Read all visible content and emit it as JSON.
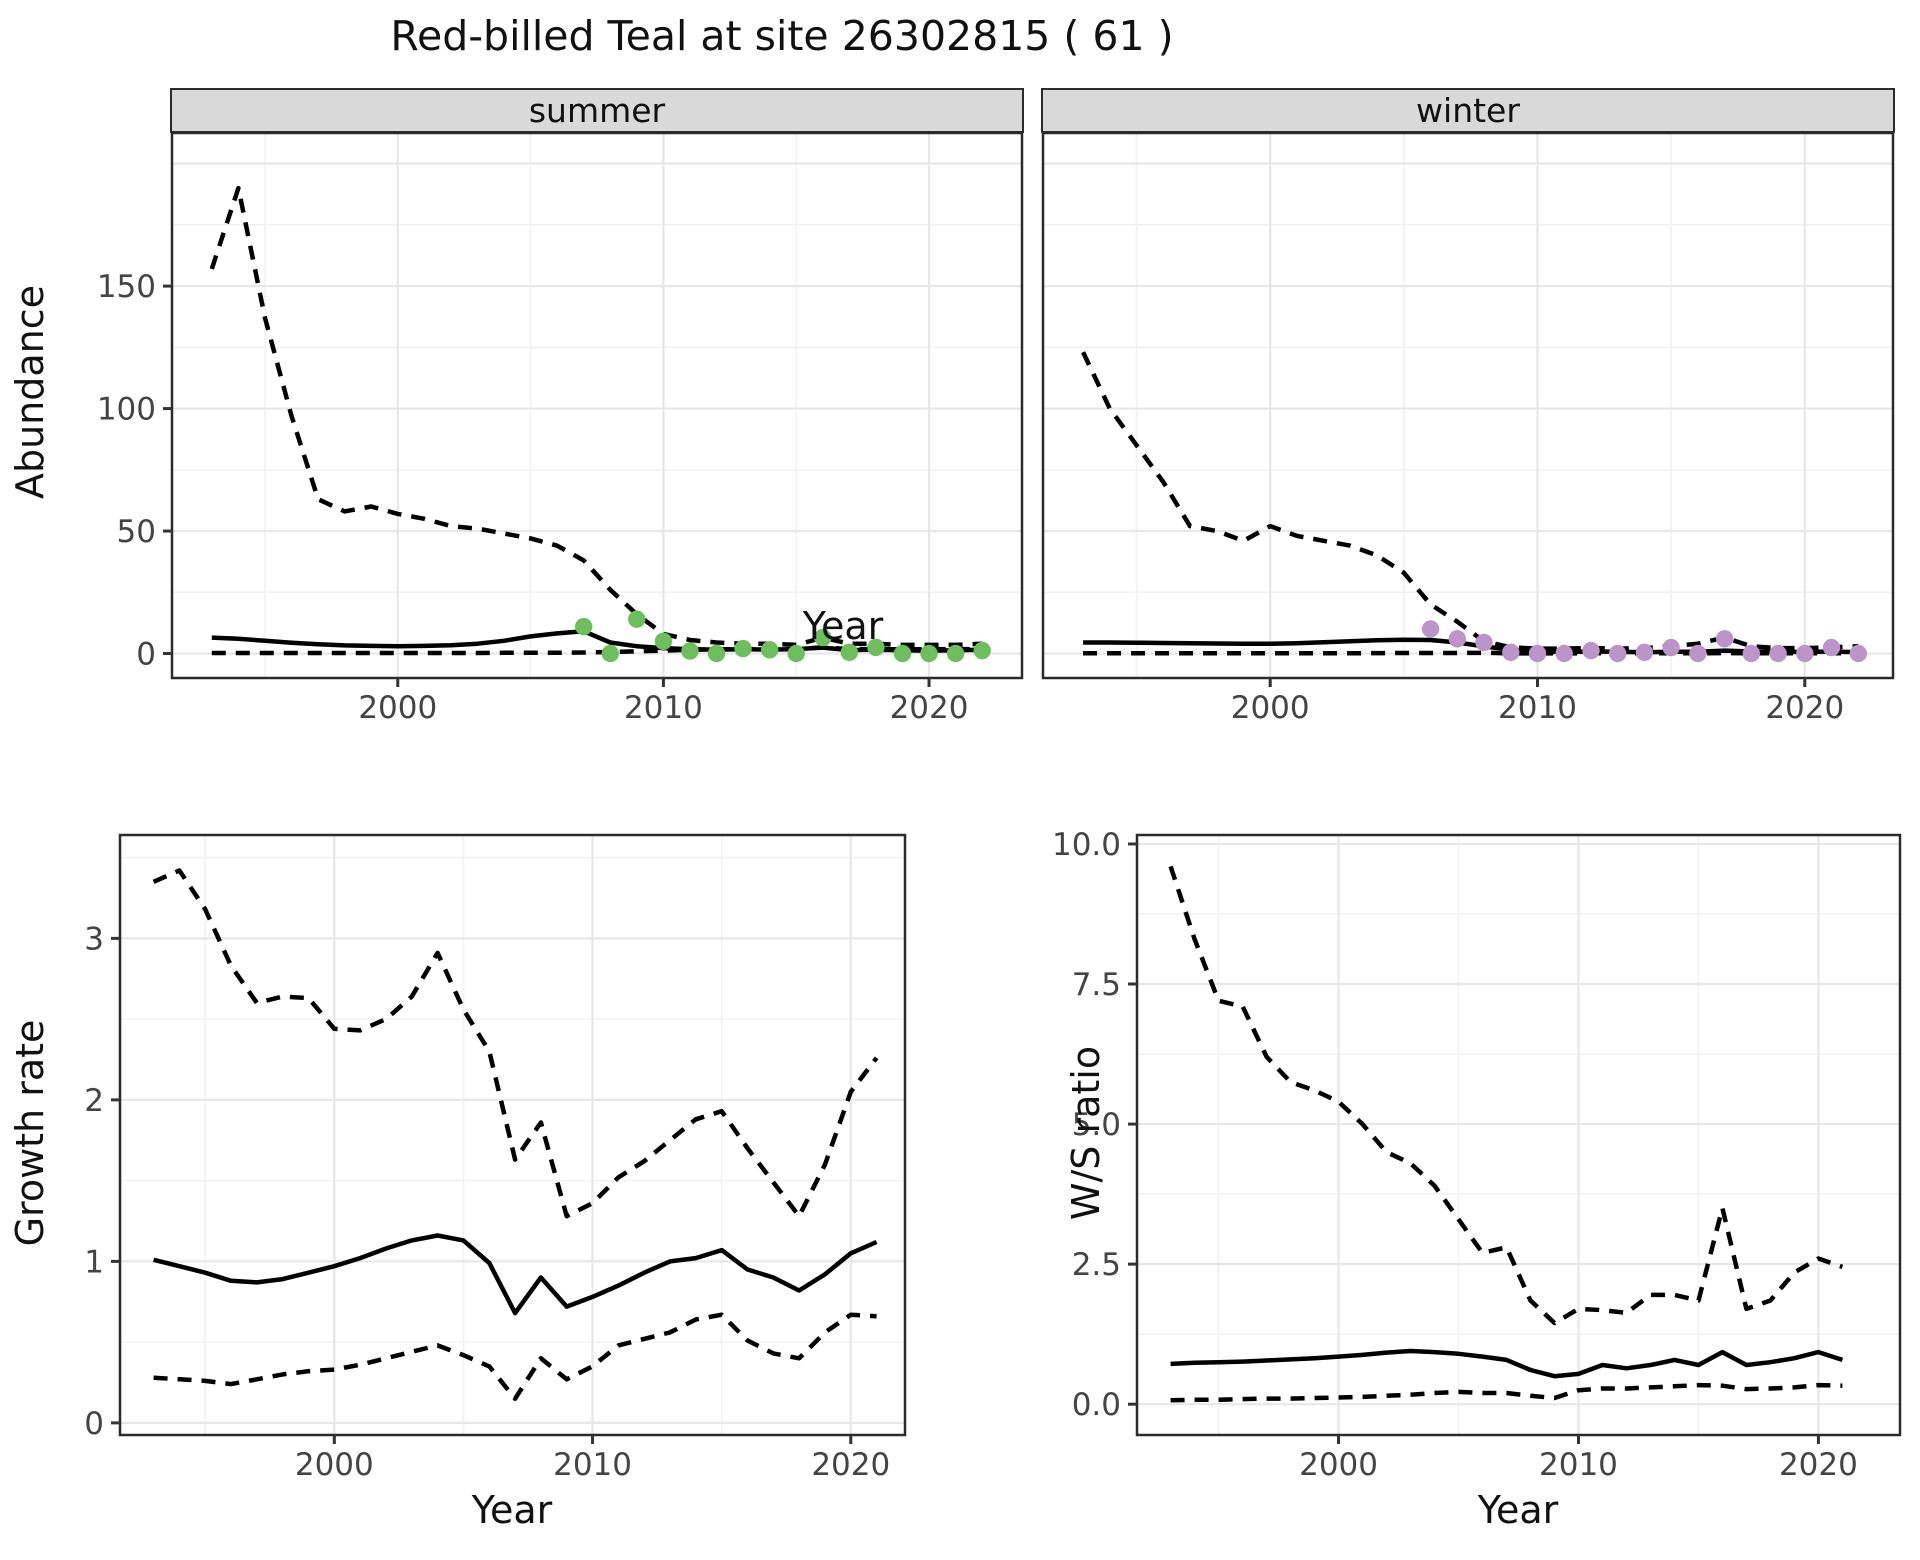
{
  "title": "Red-billed Teal at site 26302815 ( 61 )",
  "facets": {
    "summer_label": "summer",
    "winter_label": "winter"
  },
  "axis_titles": {
    "top_x": "Year",
    "top_y": "Abundance",
    "bottom_left_x": "Year",
    "bottom_left_y": "Growth rate",
    "bottom_right_x": "Year",
    "bottom_right_y": "W/S ratio"
  },
  "colors": {
    "summer_point": "#6dbe5c",
    "winter_point": "#bb95c9",
    "line": "#000000",
    "grid_major": "#e7e7e7",
    "grid_minor": "#f2f2f2",
    "panel_border": "#2b2b2b",
    "strip_bg": "#d9d9d9",
    "axis_text": "#444444"
  },
  "chart_data": [
    {
      "id": "summer",
      "type": "line",
      "facet_label": "summer",
      "xlabel": "Year",
      "ylabel": "Abundance",
      "xlim": [
        1991.5,
        2023.5
      ],
      "ylim": [
        -10,
        212.5
      ],
      "x_ticks": [
        {
          "v": 2000,
          "label": "2000"
        },
        {
          "v": 2010,
          "label": "2010"
        },
        {
          "v": 2020,
          "label": "2020"
        }
      ],
      "x_grid_minor": [
        1995,
        2005,
        2015
      ],
      "y_ticks": [
        {
          "v": 0,
          "label": "0"
        },
        {
          "v": 50,
          "label": "50"
        },
        {
          "v": 100,
          "label": "100"
        },
        {
          "v": 150,
          "label": "150"
        }
      ],
      "y_grid_major": [
        0,
        50,
        100,
        150,
        200
      ],
      "y_grid_minor": [
        25,
        75,
        125,
        175
      ],
      "years": [
        1993,
        1994,
        1995,
        1996,
        1997,
        1998,
        1999,
        2000,
        2001,
        2002,
        2003,
        2004,
        2005,
        2006,
        2007,
        2008,
        2009,
        2010,
        2011,
        2012,
        2013,
        2014,
        2015,
        2016,
        2017,
        2018,
        2019,
        2020,
        2021,
        2022
      ],
      "series": [
        {
          "name": "upper_95ci",
          "style": "dashed",
          "values": [
            157,
            190,
            137,
            97,
            63,
            58,
            60,
            57,
            55,
            52,
            51,
            49,
            47,
            44,
            38,
            26,
            16,
            8,
            5.5,
            4.5,
            4,
            4,
            3.5,
            6.5,
            4,
            4,
            3.5,
            3.5,
            3.5,
            4
          ]
        },
        {
          "name": "median",
          "style": "solid",
          "values": [
            6.5,
            6.0,
            5.2,
            4.4,
            3.8,
            3.3,
            3.1,
            3.0,
            3.1,
            3.4,
            4.0,
            5.2,
            7.0,
            8.2,
            9.1,
            4.5,
            3.0,
            2.2,
            1.7,
            1.6,
            1.7,
            1.6,
            1.8,
            2.4,
            1.4,
            1.6,
            1.3,
            1.1,
            1.3,
            1.5
          ]
        },
        {
          "name": "lower_95ci",
          "style": "dashed",
          "values": [
            0.2,
            0.2,
            0.2,
            0.2,
            0.2,
            0.2,
            0.2,
            0.2,
            0.2,
            0.2,
            0.2,
            0.3,
            0.3,
            0.3,
            0.4,
            0.6,
            0.9,
            1.2,
            1.5,
            1.7,
            1.8,
            1.8,
            1.8,
            2.5,
            1.8,
            1.8,
            1.7,
            1.7,
            1.8,
            1.8
          ]
        }
      ],
      "points": {
        "name": "observed-counts-summer",
        "color": "#6dbe5c",
        "years": [
          2007,
          2008,
          2009,
          2010,
          2011,
          2012,
          2013,
          2014,
          2015,
          2016,
          2017,
          2018,
          2019,
          2020,
          2021,
          2022
        ],
        "values": [
          11,
          0,
          14,
          5,
          1,
          0,
          2,
          1.5,
          0,
          6.5,
          0.5,
          2.5,
          0,
          0,
          0,
          1.2
        ]
      }
    },
    {
      "id": "winter",
      "type": "line",
      "facet_label": "winter",
      "xlabel": "Year",
      "ylabel": "Abundance",
      "xlim": [
        1991.5,
        2023.3
      ],
      "ylim": [
        -10,
        212.5
      ],
      "x_ticks": [
        {
          "v": 2000,
          "label": "2000"
        },
        {
          "v": 2010,
          "label": "2010"
        },
        {
          "v": 2020,
          "label": "2020"
        }
      ],
      "x_grid_minor": [
        1995,
        2005,
        2015
      ],
      "y_ticks": [],
      "y_grid_major": [
        0,
        50,
        100,
        150,
        200
      ],
      "y_grid_minor": [
        25,
        75,
        125,
        175
      ],
      "years": [
        1993,
        1994,
        1995,
        1996,
        1997,
        1998,
        1999,
        2000,
        2001,
        2002,
        2003,
        2004,
        2005,
        2006,
        2007,
        2008,
        2009,
        2010,
        2011,
        2012,
        2013,
        2014,
        2015,
        2016,
        2017,
        2018,
        2019,
        2020,
        2021,
        2022
      ],
      "series": [
        {
          "name": "upper_95ci",
          "style": "dashed",
          "values": [
            123,
            100,
            85,
            70,
            52,
            50,
            46,
            52,
            48,
            46,
            44,
            40,
            33,
            20,
            13,
            5,
            2.5,
            2,
            2,
            2.2,
            2,
            2.2,
            3,
            4,
            6.5,
            3,
            2.2,
            2.2,
            2.5,
            3
          ]
        },
        {
          "name": "median",
          "style": "solid",
          "values": [
            4.5,
            4.5,
            4.4,
            4.3,
            4.2,
            4.1,
            4.0,
            4.0,
            4.2,
            4.6,
            5.0,
            5.4,
            5.6,
            5.5,
            4.5,
            2.9,
            1.5,
            0.8,
            0.6,
            0.8,
            0.7,
            0.5,
            0.7,
            0.7,
            1.2,
            0.8,
            0.7,
            0.6,
            0.8,
            0.5
          ]
        },
        {
          "name": "lower_95ci",
          "style": "dashed",
          "values": [
            0.1,
            0.1,
            0.1,
            0.1,
            0.1,
            0.1,
            0.1,
            0.1,
            0.1,
            0.1,
            0.1,
            0.15,
            0.2,
            0.2,
            0.2,
            0.3,
            0.1,
            0.05,
            0.05,
            0.1,
            0.1,
            0.1,
            0.1,
            0.1,
            0.15,
            0.1,
            0.1,
            0.1,
            0.1,
            0.1
          ]
        }
      ],
      "points": {
        "name": "observed-counts-winter",
        "color": "#bb95c9",
        "years": [
          2006,
          2007,
          2008,
          2009,
          2010,
          2011,
          2012,
          2013,
          2014,
          2015,
          2016,
          2017,
          2018,
          2019,
          2020,
          2021,
          2022
        ],
        "values": [
          10,
          6,
          4.5,
          0.5,
          0,
          0,
          1.2,
          0,
          0.5,
          2.4,
          0,
          6,
          0,
          0,
          0,
          2.4,
          0
        ]
      }
    },
    {
      "id": "growth",
      "type": "line",
      "facet_label": "",
      "xlabel": "Year",
      "ylabel": "Growth rate",
      "xlim": [
        1991.7,
        2022.1
      ],
      "ylim": [
        -0.075,
        3.64
      ],
      "x_ticks": [
        {
          "v": 2000,
          "label": "2000"
        },
        {
          "v": 2010,
          "label": "2010"
        },
        {
          "v": 2020,
          "label": "2020"
        }
      ],
      "x_grid_minor": [
        1995,
        2005,
        2015
      ],
      "y_ticks": [
        {
          "v": 0,
          "label": "0"
        },
        {
          "v": 1,
          "label": "1"
        },
        {
          "v": 2,
          "label": "2"
        },
        {
          "v": 3,
          "label": "3"
        }
      ],
      "y_grid_major": [
        0,
        1,
        2,
        3
      ],
      "y_grid_minor": [
        0.5,
        1.5,
        2.5,
        3.5
      ],
      "years": [
        1993,
        1994,
        1995,
        1996,
        1997,
        1998,
        1999,
        2000,
        2001,
        2002,
        2003,
        2004,
        2005,
        2006,
        2007,
        2008,
        2009,
        2010,
        2011,
        2012,
        2013,
        2014,
        2015,
        2016,
        2017,
        2018,
        2019,
        2020,
        2021
      ],
      "series": [
        {
          "name": "upper_95ci",
          "style": "dashed",
          "values": [
            3.35,
            3.42,
            3.18,
            2.83,
            2.6,
            2.64,
            2.63,
            2.44,
            2.43,
            2.5,
            2.64,
            2.91,
            2.56,
            2.3,
            1.63,
            1.86,
            1.28,
            1.36,
            1.52,
            1.62,
            1.75,
            1.88,
            1.93,
            1.7,
            1.49,
            1.28,
            1.6,
            2.05,
            2.26
          ]
        },
        {
          "name": "median",
          "style": "solid",
          "values": [
            1.01,
            0.97,
            0.93,
            0.88,
            0.87,
            0.89,
            0.93,
            0.97,
            1.02,
            1.08,
            1.13,
            1.16,
            1.13,
            0.99,
            0.68,
            0.9,
            0.72,
            0.78,
            0.85,
            0.93,
            1.0,
            1.02,
            1.07,
            0.95,
            0.9,
            0.82,
            0.92,
            1.05,
            1.12
          ]
        },
        {
          "name": "lower_95ci",
          "style": "dashed",
          "values": [
            0.28,
            0.27,
            0.26,
            0.24,
            0.27,
            0.3,
            0.32,
            0.33,
            0.36,
            0.4,
            0.44,
            0.48,
            0.42,
            0.35,
            0.15,
            0.4,
            0.27,
            0.35,
            0.48,
            0.52,
            0.56,
            0.64,
            0.67,
            0.51,
            0.43,
            0.4,
            0.56,
            0.67,
            0.66
          ]
        }
      ],
      "points": null
    },
    {
      "id": "ws",
      "type": "line",
      "facet_label": "",
      "xlabel": "Year",
      "ylabel": "W/S ratio",
      "xlim": [
        1991.6,
        2023.4
      ],
      "ylim": [
        -0.55,
        10.16
      ],
      "x_ticks": [
        {
          "v": 2000,
          "label": "2000"
        },
        {
          "v": 2010,
          "label": "2010"
        },
        {
          "v": 2020,
          "label": "2020"
        }
      ],
      "x_grid_minor": [
        1995,
        2005,
        2015
      ],
      "y_ticks": [
        {
          "v": 0,
          "label": "0.0"
        },
        {
          "v": 2.5,
          "label": "2.5"
        },
        {
          "v": 5,
          "label": "5.0"
        },
        {
          "v": 7.5,
          "label": "7.5"
        },
        {
          "v": 10,
          "label": "10.0"
        }
      ],
      "y_grid_major": [
        0,
        2.5,
        5,
        7.5,
        10
      ],
      "y_grid_minor": [
        1.25,
        3.75,
        6.25,
        8.75
      ],
      "years": [
        1993,
        1994,
        1995,
        1996,
        1997,
        1998,
        1999,
        2000,
        2001,
        2002,
        2003,
        2004,
        2005,
        2006,
        2007,
        2008,
        2009,
        2010,
        2011,
        2012,
        2013,
        2014,
        2015,
        2016,
        2017,
        2018,
        2019,
        2020,
        2021
      ],
      "series": [
        {
          "name": "upper_95ci",
          "style": "dashed",
          "values": [
            9.6,
            8.3,
            7.2,
            7.1,
            6.2,
            5.75,
            5.6,
            5.4,
            5.0,
            4.5,
            4.3,
            3.9,
            3.3,
            2.7,
            2.8,
            1.85,
            1.45,
            1.7,
            1.68,
            1.63,
            1.95,
            1.95,
            1.85,
            3.5,
            1.7,
            1.85,
            2.35,
            2.6,
            2.45
          ]
        },
        {
          "name": "median",
          "style": "solid",
          "values": [
            0.72,
            0.74,
            0.75,
            0.76,
            0.78,
            0.8,
            0.82,
            0.85,
            0.88,
            0.92,
            0.95,
            0.93,
            0.9,
            0.85,
            0.79,
            0.61,
            0.5,
            0.54,
            0.7,
            0.64,
            0.7,
            0.79,
            0.7,
            0.93,
            0.7,
            0.75,
            0.82,
            0.93,
            0.79
          ]
        },
        {
          "name": "lower_95ci",
          "style": "dashed",
          "values": [
            0.07,
            0.08,
            0.08,
            0.09,
            0.1,
            0.1,
            0.11,
            0.12,
            0.13,
            0.15,
            0.17,
            0.2,
            0.22,
            0.2,
            0.2,
            0.15,
            0.11,
            0.25,
            0.28,
            0.28,
            0.3,
            0.32,
            0.34,
            0.33,
            0.27,
            0.28,
            0.3,
            0.34,
            0.33
          ]
        }
      ],
      "points": null
    }
  ]
}
